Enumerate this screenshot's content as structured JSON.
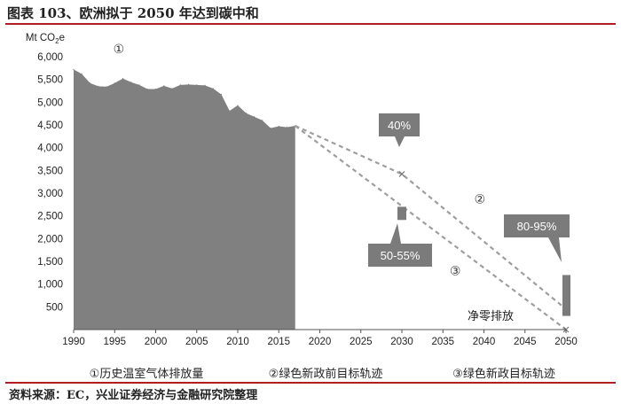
{
  "header": {
    "title": "图表 103、欧洲拟于 2050 年达到碳中和"
  },
  "footer": {
    "source": "资料来源：EC，兴业证券经济与金融研究院整理"
  },
  "chart_data": {
    "type": "area",
    "ylabel": "Mt CO₂e",
    "xlim": [
      1990,
      2050
    ],
    "ylim": [
      0,
      6000
    ],
    "x_ticks": [
      "1990",
      "1995",
      "2000",
      "2005",
      "2010",
      "2015",
      "2020",
      "2025",
      "2030",
      "2035",
      "2040",
      "2045",
      "2050"
    ],
    "y_ticks": [
      "500",
      "1,000",
      "1,500",
      "2,000",
      "2,500",
      "3,000",
      "3,500",
      "4,000",
      "4,500",
      "5,000",
      "5,500",
      "6,000"
    ],
    "colors": {
      "area": "#808080",
      "line": "#9e9e9e",
      "callout": "#7b7b7b",
      "rule": "#b01e23"
    },
    "series": [
      {
        "name": "①历史温室气体排放量",
        "marker": "①",
        "x": [
          1990,
          1991,
          1992,
          1993,
          1994,
          1995,
          1996,
          1997,
          1998,
          1999,
          2000,
          2001,
          2002,
          2003,
          2004,
          2005,
          2006,
          2007,
          2008,
          2009,
          2010,
          2011,
          2012,
          2013,
          2014,
          2015,
          2016,
          2017
        ],
        "y": [
          5720,
          5620,
          5420,
          5350,
          5340,
          5420,
          5520,
          5440,
          5380,
          5290,
          5290,
          5360,
          5300,
          5380,
          5390,
          5380,
          5370,
          5300,
          5170,
          4810,
          4930,
          4760,
          4680,
          4600,
          4430,
          4470,
          4450,
          4480
        ]
      },
      {
        "name": "②绿色新政前目标轨迹",
        "marker": "②",
        "x": [
          2017,
          2030,
          2050
        ],
        "y": [
          4480,
          3420,
          450
        ]
      },
      {
        "name": "③绿色新政目标轨迹",
        "marker": "③",
        "x": [
          2017,
          2050
        ],
        "y": [
          4480,
          0
        ]
      }
    ],
    "annotations": {
      "target_2030_40": {
        "label": "40%",
        "x": 2030,
        "y": 3420
      },
      "target_2030_range": {
        "label": "50-55%",
        "x": 2030,
        "y_from": 2410,
        "y_to": 2700
      },
      "target_2050_range": {
        "label": "80-95%",
        "x": 2050,
        "y_from": 300,
        "y_to": 1200
      },
      "net_zero": {
        "label": "净零排放",
        "x": 2050,
        "y": 0
      }
    }
  }
}
